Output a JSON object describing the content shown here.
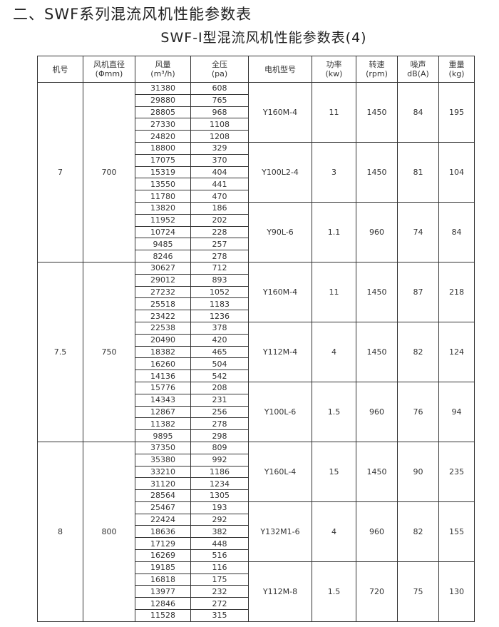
{
  "heading": "二、SWF系列混流风机性能参数表",
  "table_title": "SWF-Ⅰ型混流风机性能参数表(4)",
  "columns": [
    {
      "label": "机号",
      "unit": ""
    },
    {
      "label": "风机直径",
      "unit": "(Φmm)"
    },
    {
      "label": "风量",
      "unit": "(m³/h)"
    },
    {
      "label": "全压",
      "unit": "(pa)"
    },
    {
      "label": "电机型号",
      "unit": ""
    },
    {
      "label": "功率",
      "unit": "(kw)"
    },
    {
      "label": "转速",
      "unit": "(rpm)"
    },
    {
      "label": "噪声",
      "unit": "dB(A)"
    },
    {
      "label": "重量",
      "unit": "(kg)"
    }
  ],
  "groups": [
    {
      "model_no": "7",
      "diameter": "700",
      "motors": [
        {
          "motor": "Y160M-4",
          "power": "11",
          "speed": "1450",
          "noise": "84",
          "weight": "195",
          "points": [
            [
              "31380",
              "608"
            ],
            [
              "29880",
              "765"
            ],
            [
              "28805",
              "968"
            ],
            [
              "27330",
              "1108"
            ],
            [
              "24820",
              "1208"
            ]
          ]
        },
        {
          "motor": "Y100L2-4",
          "power": "3",
          "speed": "1450",
          "noise": "81",
          "weight": "104",
          "points": [
            [
              "18800",
              "329"
            ],
            [
              "17075",
              "370"
            ],
            [
              "15319",
              "404"
            ],
            [
              "13550",
              "441"
            ],
            [
              "11780",
              "470"
            ]
          ]
        },
        {
          "motor": "Y90L-6",
          "power": "1.1",
          "speed": "960",
          "noise": "74",
          "weight": "84",
          "points": [
            [
              "13820",
              "186"
            ],
            [
              "11952",
              "202"
            ],
            [
              "10724",
              "228"
            ],
            [
              "9485",
              "257"
            ],
            [
              "8246",
              "278"
            ]
          ]
        }
      ]
    },
    {
      "model_no": "7.5",
      "diameter": "750",
      "motors": [
        {
          "motor": "Y160M-4",
          "power": "11",
          "speed": "1450",
          "noise": "87",
          "weight": "218",
          "points": [
            [
              "30627",
              "712"
            ],
            [
              "29012",
              "893"
            ],
            [
              "27232",
              "1052"
            ],
            [
              "25518",
              "1183"
            ],
            [
              "23422",
              "1236"
            ]
          ]
        },
        {
          "motor": "Y112M-4",
          "power": "4",
          "speed": "1450",
          "noise": "82",
          "weight": "124",
          "points": [
            [
              "22538",
              "378"
            ],
            [
              "20490",
              "420"
            ],
            [
              "18382",
              "465"
            ],
            [
              "16260",
              "504"
            ],
            [
              "14136",
              "542"
            ]
          ]
        },
        {
          "motor": "Y100L-6",
          "power": "1.5",
          "speed": "960",
          "noise": "76",
          "weight": "94",
          "points": [
            [
              "15776",
              "208"
            ],
            [
              "14343",
              "231"
            ],
            [
              "12867",
              "256"
            ],
            [
              "11382",
              "278"
            ],
            [
              "9895",
              "298"
            ]
          ]
        }
      ]
    },
    {
      "model_no": "8",
      "diameter": "800",
      "motors": [
        {
          "motor": "Y160L-4",
          "power": "15",
          "speed": "1450",
          "noise": "90",
          "weight": "235",
          "points": [
            [
              "37350",
              "809"
            ],
            [
              "35380",
              "992"
            ],
            [
              "33210",
              "1186"
            ],
            [
              "31120",
              "1234"
            ],
            [
              "28564",
              "1305"
            ]
          ]
        },
        {
          "motor": "Y132M1-6",
          "power": "4",
          "speed": "960",
          "noise": "82",
          "weight": "155",
          "points": [
            [
              "25467",
              "193"
            ],
            [
              "22424",
              "292"
            ],
            [
              "18636",
              "382"
            ],
            [
              "17129",
              "448"
            ],
            [
              "16269",
              "516"
            ]
          ]
        },
        {
          "motor": "Y112M-8",
          "power": "1.5",
          "speed": "720",
          "noise": "75",
          "weight": "130",
          "points": [
            [
              "19185",
              "116"
            ],
            [
              "16818",
              "175"
            ],
            [
              "13977",
              "232"
            ],
            [
              "12846",
              "272"
            ],
            [
              "11528",
              "315"
            ]
          ]
        }
      ]
    }
  ]
}
